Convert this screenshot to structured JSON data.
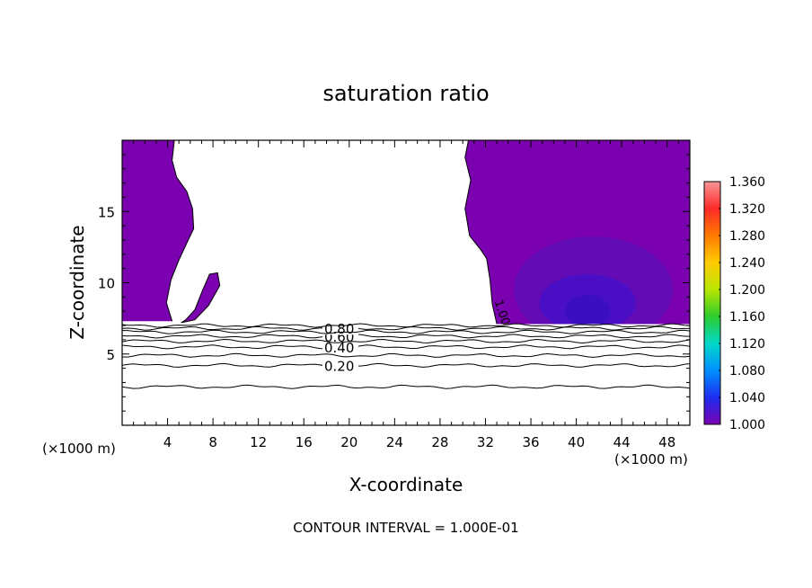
{
  "chart_data": {
    "type": "contour",
    "title": "saturation ratio",
    "xlabel": "X-coordinate",
    "ylabel": "Z-coordinate",
    "x_unit_left": "(×1000 m)",
    "x_unit_right": "(×1000 m)",
    "footer": "CONTOUR INTERVAL = 1.000E-01",
    "xlim": [
      0,
      50
    ],
    "ylim": [
      0,
      20
    ],
    "xticks": [
      4,
      8,
      12,
      16,
      20,
      24,
      28,
      32,
      36,
      40,
      44,
      48
    ],
    "yticks": [
      5,
      10,
      15
    ],
    "contour_levels": [
      {
        "value": 0.2,
        "z": 4.2,
        "label": "0.20",
        "label_x": 17.8
      },
      {
        "value": 0.4,
        "z": 5.5,
        "label": "0.40",
        "label_x": 17.8
      },
      {
        "value": 0.6,
        "z": 6.25,
        "label": "0.60",
        "label_x": 17.8
      },
      {
        "value": 0.8,
        "z": 6.8,
        "label": "0.80",
        "label_x": 17.8
      },
      {
        "value": 0.1,
        "z": 2.7,
        "label": "",
        "label_x": 0
      },
      {
        "value": 0.3,
        "z": 4.9,
        "label": "",
        "label_x": 0
      },
      {
        "value": 0.5,
        "z": 5.9,
        "label": "",
        "label_x": 0
      },
      {
        "value": 0.7,
        "z": 6.55,
        "label": "",
        "label_x": 0
      },
      {
        "value": 0.9,
        "z": 7.0,
        "label": "",
        "label_x": 0
      }
    ],
    "inline_label": {
      "text": "1.00",
      "x": 32.8,
      "z": 8.7
    },
    "colorbar": {
      "labels": [
        "1.360",
        "1.320",
        "1.280",
        "1.240",
        "1.200",
        "1.160",
        "1.120",
        "1.080",
        "1.040",
        "1.000"
      ],
      "min": 1.0,
      "max": 1.36,
      "colors": [
        "#f79595",
        "#ff2a2a",
        "#ff7a00",
        "#ffcc00",
        "#b8e600",
        "#2ecc2e",
        "#00d8c8",
        "#0090ff",
        "#1e2ef0",
        "#7a00b0"
      ]
    },
    "fill_color": "#7a00b0",
    "dark_color": "#3a10c0"
  }
}
